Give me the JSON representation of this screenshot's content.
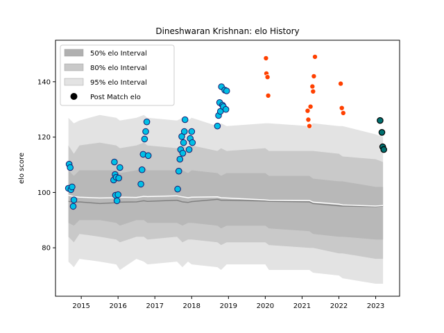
{
  "chart_data": {
    "type": "scatter",
    "title": "Dineshwaran Krishnan: elo History",
    "xlabel": "",
    "ylabel": "elo score",
    "xlim": [
      2014.3,
      2023.65
    ],
    "ylim": [
      62.5,
      155
    ],
    "x_ticks": [
      2015,
      2016,
      2017,
      2018,
      2019,
      2020,
      2021,
      2022,
      2023
    ],
    "y_ticks": [
      80,
      100,
      120,
      140
    ],
    "grid": false,
    "legend_placement": "top-left",
    "legend": [
      {
        "label": "50% elo Interval",
        "kind": "band",
        "color": "#b0b0b0"
      },
      {
        "label": "80% elo Interval",
        "kind": "band",
        "color": "#c9c9c9"
      },
      {
        "label": "95% elo Interval",
        "kind": "band",
        "color": "#e3e3e3"
      },
      {
        "label": "Post Match elo",
        "kind": "dot",
        "color": "#000000"
      }
    ],
    "colors": {
      "band95": "#e3e3e3",
      "band80": "#c9c9c9",
      "band50": "#b8b8b8",
      "median_line": "#808080",
      "upper_line": "#ffffff",
      "dot_fill_main": "#00c0e6",
      "dot_edge_main": "#1a1a6e",
      "dot_fill_red": "#ff4000",
      "dot_edge_red": "#ffffff",
      "dot_fill_dark": "#007070",
      "dot_edge_dark": "#000000"
    },
    "bands": {
      "x": [
        2014.65,
        2014.8,
        2014.95,
        2015.5,
        2015.95,
        2016.05,
        2016.5,
        2016.7,
        2016.8,
        2017.6,
        2017.75,
        2017.9,
        2018.0,
        2018.7,
        2018.8,
        2018.95,
        2020.0,
        2020.1,
        2021.2,
        2021.3,
        2022.0,
        2022.1,
        2023.0,
        2023.2
      ],
      "upper95": [
        127,
        125,
        126,
        128,
        127,
        126,
        127,
        128,
        127,
        126,
        127,
        126,
        127,
        124,
        125,
        124,
        125,
        125,
        124,
        125,
        124,
        124,
        121,
        120
      ],
      "lower95": [
        75,
        73,
        76,
        75,
        74,
        72,
        76,
        75,
        74,
        75,
        73,
        75,
        74,
        73,
        72,
        74,
        74,
        72,
        72,
        71,
        70,
        69,
        67,
        67
      ],
      "upper80": [
        117,
        114,
        117,
        118,
        117,
        116,
        117,
        118,
        117,
        116,
        117,
        116,
        117,
        115,
        116,
        115,
        116,
        115,
        115,
        115,
        114,
        113,
        112,
        111
      ],
      "lower80": [
        84,
        82,
        85,
        84,
        83,
        82,
        84,
        84,
        83,
        84,
        82,
        83,
        83,
        82,
        81,
        82,
        82,
        81,
        80,
        80,
        78,
        78,
        76,
        76
      ],
      "upper50": [
        108,
        106,
        108,
        108,
        108,
        107,
        108,
        109,
        108,
        108,
        108,
        107,
        108,
        107,
        106,
        107,
        107,
        106,
        106,
        105,
        104,
        104,
        102,
        102
      ],
      "lower50": [
        89,
        88,
        90,
        90,
        89,
        88,
        90,
        90,
        89,
        89,
        88,
        89,
        89,
        88,
        87,
        88,
        88,
        87,
        86,
        85,
        84,
        84,
        83,
        83
      ],
      "median": [
        96.8,
        96.4,
        96.6,
        96.0,
        96.3,
        96.5,
        96.6,
        97.0,
        96.8,
        97.2,
        96.6,
        96.4,
        96.7,
        97.5,
        97.2,
        97.2,
        96.9,
        96.8,
        96.6,
        96.0,
        95.2,
        95.1,
        94.9,
        95.1
      ],
      "upper": [
        99.0,
        98.5,
        98.3,
        98.0,
        98.1,
        98.3,
        98.2,
        98.6,
        98.5,
        98.8,
        98.4,
        98.1,
        98.3,
        98.4,
        98.1,
        98.0,
        97.3,
        97.2,
        97.1,
        96.5,
        95.8,
        95.5,
        95.1,
        95.3
      ]
    },
    "series": [
      {
        "style": "main",
        "x": [
          2014.65,
          2014.67,
          2014.7,
          2014.72,
          2014.75,
          2014.78,
          2014.8,
          2015.88,
          2015.9,
          2015.92,
          2015.93,
          2015.95,
          2015.97,
          2016.0,
          2016.02,
          2016.05,
          2016.62,
          2016.65,
          2016.68,
          2016.72,
          2016.75,
          2016.78,
          2016.82,
          2017.62,
          2017.65,
          2017.68,
          2017.7,
          2017.73,
          2017.76,
          2017.78,
          2017.8,
          2017.82,
          2017.93,
          2017.96,
          2018.0,
          2018.02,
          2018.7,
          2018.73,
          2018.76,
          2018.78,
          2018.81,
          2018.84,
          2018.86,
          2018.9,
          2018.93,
          2018.95
        ],
        "y": [
          101.5,
          110.2,
          109.0,
          101.0,
          102.0,
          95.0,
          97.3,
          104.5,
          111.0,
          106.5,
          99.0,
          105.5,
          97.0,
          99.2,
          105.2,
          109.0,
          103.0,
          108.2,
          113.8,
          119.3,
          122.0,
          125.5,
          113.3,
          101.2,
          107.7,
          112.0,
          115.5,
          120.2,
          114.2,
          118.0,
          122.0,
          126.3,
          115.5,
          119.5,
          122.0,
          118.0,
          124.0,
          127.8,
          132.5,
          129.3,
          138.2,
          131.5,
          131.0,
          137.0,
          130.0,
          136.7
        ]
      },
      {
        "style": "red",
        "x": [
          2020.02,
          2020.03,
          2020.06,
          2020.08,
          2021.15,
          2021.17,
          2021.2,
          2021.23,
          2021.28,
          2021.3,
          2021.32,
          2022.05,
          2022.08,
          2022.12
        ],
        "y": [
          148.5,
          143.0,
          141.7,
          135.0,
          129.5,
          126.3,
          124.0,
          131.0,
          138.3,
          136.5,
          142.0,
          139.3,
          130.5,
          128.7
        ]
      },
      {
        "style": "red",
        "x": [
          2021.35
        ],
        "y": [
          149.0
        ]
      },
      {
        "style": "dark",
        "x": [
          2023.12,
          2023.17,
          2023.19,
          2023.22
        ],
        "y": [
          126.0,
          121.7,
          116.5,
          115.5
        ]
      }
    ]
  }
}
